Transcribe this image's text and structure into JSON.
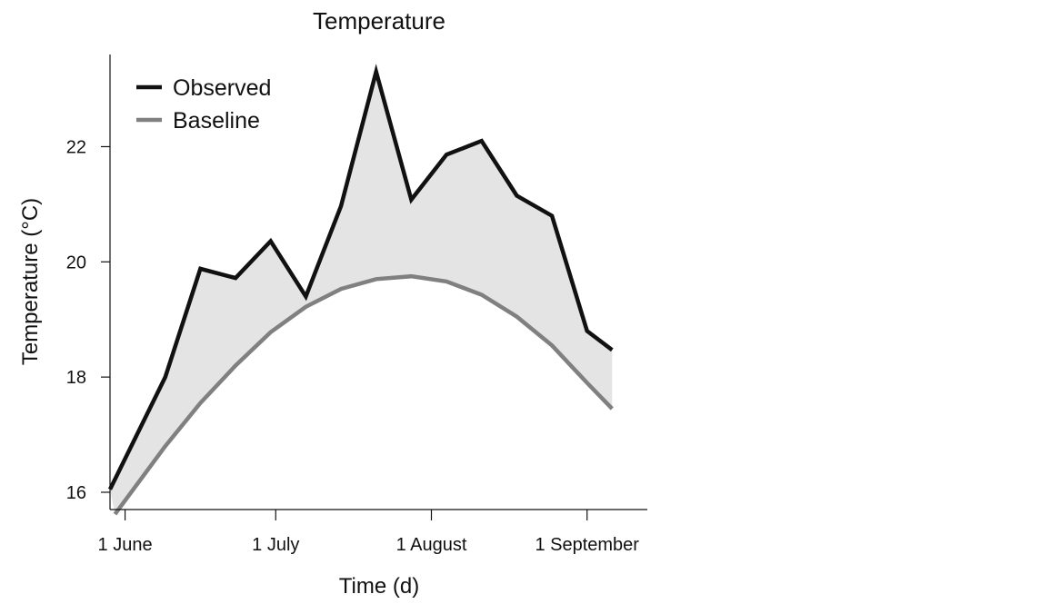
{
  "chart_data": {
    "type": "line",
    "title": "Temperature",
    "xlabel": "Time (d)",
    "ylabel": "Temperature (°C)",
    "xlim": [
      "2023-05-29",
      "2023-09-13"
    ],
    "ylim": [
      15.7,
      23.6
    ],
    "x_ticks": [
      {
        "date": "2023-06-01",
        "label": "1 June"
      },
      {
        "date": "2023-07-01",
        "label": "1 July"
      },
      {
        "date": "2023-08-01",
        "label": "1 August"
      },
      {
        "date": "2023-09-01",
        "label": "1 September"
      }
    ],
    "y_ticks": [
      16,
      18,
      20,
      22
    ],
    "legend_position": "top-left",
    "grid": false,
    "fill_between_series": true,
    "fill_color": "#e4e4e4",
    "series": [
      {
        "name": "Observed",
        "color": "#111111",
        "points": [
          {
            "x": "2023-05-29",
            "y": 16.05
          },
          {
            "x": "2023-06-09",
            "y": 18.0
          },
          {
            "x": "2023-06-16",
            "y": 19.88
          },
          {
            "x": "2023-06-23",
            "y": 19.72
          },
          {
            "x": "2023-06-30",
            "y": 20.36
          },
          {
            "x": "2023-07-07",
            "y": 19.4
          },
          {
            "x": "2023-07-14",
            "y": 20.97
          },
          {
            "x": "2023-07-21",
            "y": 23.3
          },
          {
            "x": "2023-07-28",
            "y": 21.08
          },
          {
            "x": "2023-08-04",
            "y": 21.86
          },
          {
            "x": "2023-08-11",
            "y": 22.1
          },
          {
            "x": "2023-08-18",
            "y": 21.15
          },
          {
            "x": "2023-08-25",
            "y": 20.8
          },
          {
            "x": "2023-09-01",
            "y": 18.8
          },
          {
            "x": "2023-09-06",
            "y": 18.47
          }
        ]
      },
      {
        "name": "Baseline",
        "color": "#808080",
        "points": [
          {
            "x": "2023-05-30",
            "y": 15.62
          },
          {
            "x": "2023-06-09",
            "y": 16.8
          },
          {
            "x": "2023-06-16",
            "y": 17.55
          },
          {
            "x": "2023-06-23",
            "y": 18.2
          },
          {
            "x": "2023-06-30",
            "y": 18.78
          },
          {
            "x": "2023-07-07",
            "y": 19.22
          },
          {
            "x": "2023-07-14",
            "y": 19.53
          },
          {
            "x": "2023-07-21",
            "y": 19.7
          },
          {
            "x": "2023-07-28",
            "y": 19.75
          },
          {
            "x": "2023-08-04",
            "y": 19.66
          },
          {
            "x": "2023-08-11",
            "y": 19.43
          },
          {
            "x": "2023-08-18",
            "y": 19.05
          },
          {
            "x": "2023-08-25",
            "y": 18.55
          },
          {
            "x": "2023-09-01",
            "y": 17.9
          },
          {
            "x": "2023-09-06",
            "y": 17.45
          }
        ]
      }
    ]
  }
}
